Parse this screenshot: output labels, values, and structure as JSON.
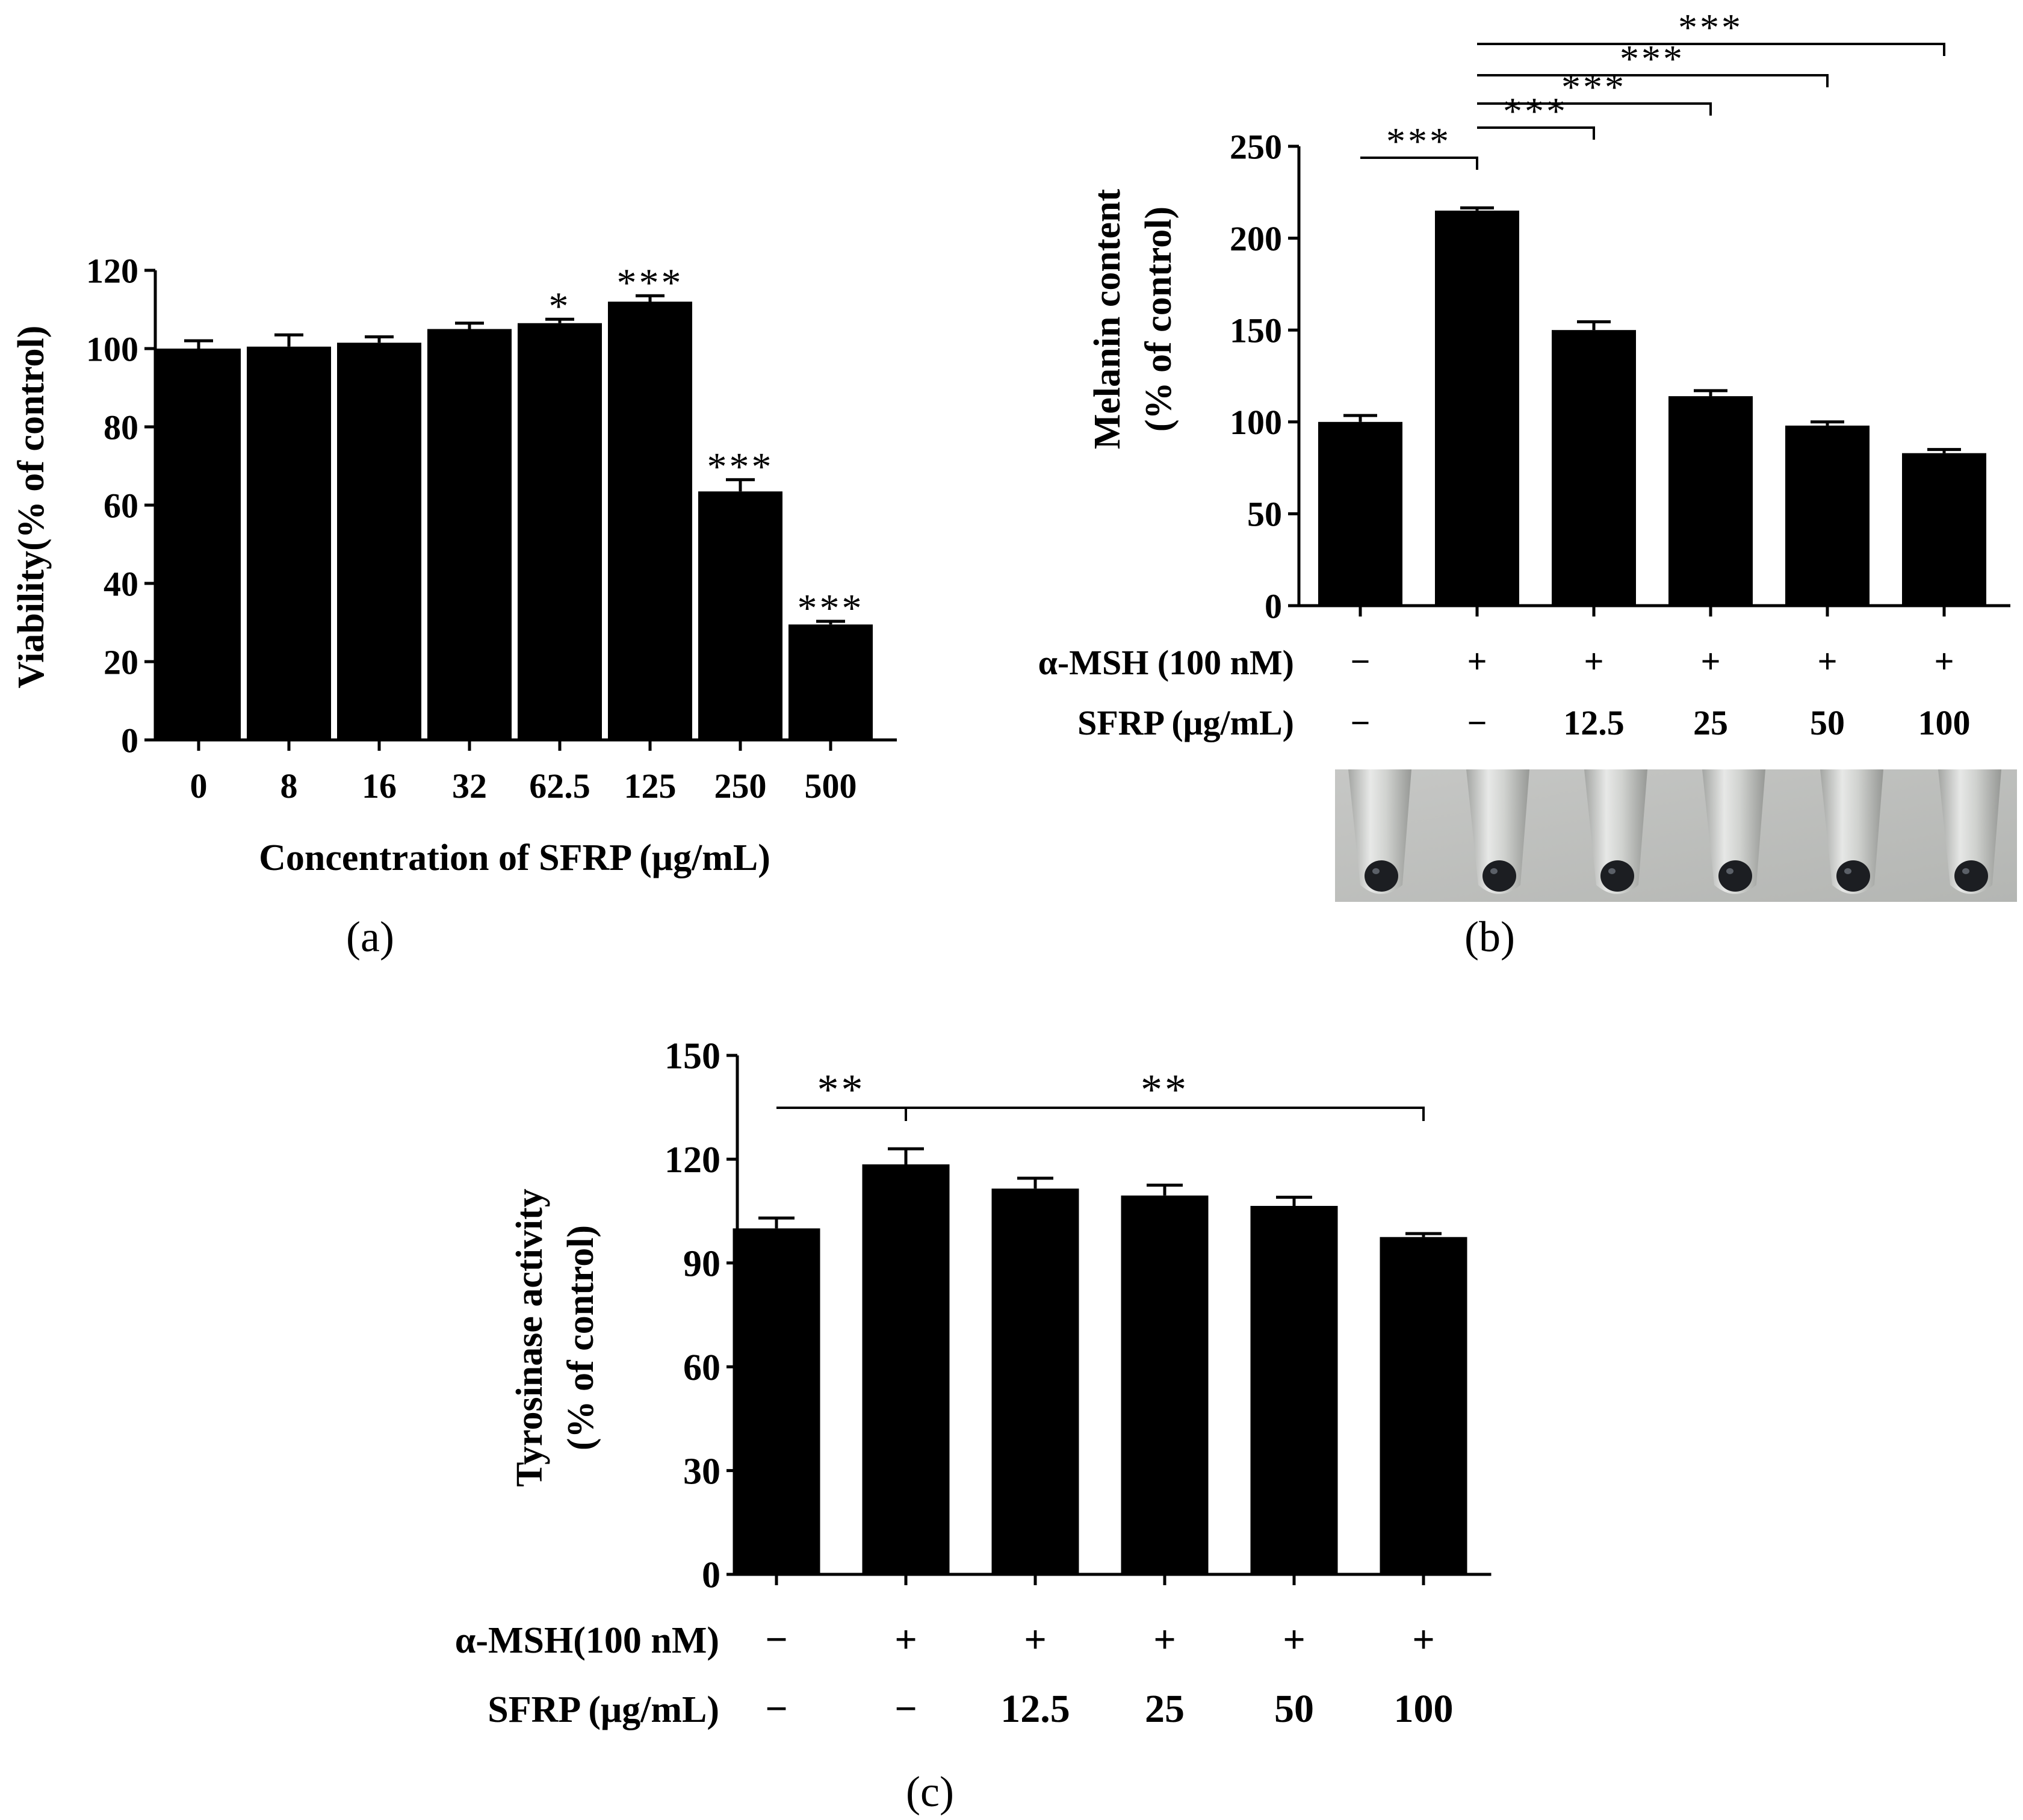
{
  "chart_data": [
    {
      "panel": "(a)",
      "type": "bar",
      "ylabel": "Viability(% of control)",
      "xlabel": "Concentration of SFRP (μg/mL)",
      "ylim": [
        0,
        120
      ],
      "yticks": [
        0,
        20,
        40,
        60,
        80,
        100,
        120
      ],
      "categories": [
        "0",
        "8",
        "16",
        "32",
        "62.5",
        "125",
        "250",
        "500"
      ],
      "values": [
        100,
        100.5,
        101.5,
        105,
        106.5,
        112,
        63.5,
        29.5
      ],
      "errors": [
        2,
        3,
        1.5,
        1.5,
        1,
        1.5,
        3,
        0.8
      ],
      "significance": [
        "",
        "",
        "",
        "",
        "*",
        "***",
        "***",
        "***"
      ],
      "bar_color": "#000000"
    },
    {
      "panel": "(b)",
      "type": "bar",
      "ylabel": [
        "Melanin content",
        "(% of control)"
      ],
      "ylim": [
        0,
        250
      ],
      "yticks": [
        0,
        50,
        100,
        150,
        200,
        250
      ],
      "treatment_rows": [
        {
          "label": "α-MSH (100 nM)",
          "values": [
            "−",
            "+",
            "+",
            "+",
            "+",
            "+"
          ]
        },
        {
          "label": "SFRP (μg/mL)",
          "values": [
            "−",
            "−",
            "12.5",
            "25",
            "50",
            "100"
          ]
        }
      ],
      "values": [
        100,
        215,
        150,
        114,
        98,
        83
      ],
      "errors": [
        3.5,
        1.5,
        4.5,
        3,
        2,
        2
      ],
      "brackets": [
        {
          "from": 0,
          "to": 1,
          "label": "***"
        },
        {
          "from": 1,
          "to": 2,
          "label": "***"
        },
        {
          "from": 1,
          "to": 3,
          "label": "***"
        },
        {
          "from": 1,
          "to": 4,
          "label": "***"
        },
        {
          "from": 1,
          "to": 5,
          "label": "***"
        }
      ],
      "bar_color": "#000000"
    },
    {
      "panel": "(c)",
      "type": "bar",
      "ylabel": [
        "Tyrosinase activity",
        "(% of control)"
      ],
      "ylim": [
        0,
        150
      ],
      "yticks": [
        0,
        30,
        60,
        90,
        120,
        150
      ],
      "treatment_rows": [
        {
          "label": "α-MSH(100 nM)",
          "values": [
            "−",
            "+",
            "+",
            "+",
            "+",
            "+"
          ]
        },
        {
          "label": "SFRP (μg/mL)",
          "values": [
            "−",
            "−",
            "12.5",
            "25",
            "50",
            "100"
          ]
        }
      ],
      "values": [
        100,
        118.5,
        111.5,
        109.5,
        106.5,
        97.5
      ],
      "errors": [
        3,
        4.5,
        3,
        3,
        2.5,
        1
      ],
      "brackets": [
        {
          "from": 0,
          "to": 1,
          "label": "**"
        },
        {
          "from": 1,
          "to": 5,
          "label": "**"
        }
      ],
      "bar_color": "#000000"
    }
  ]
}
